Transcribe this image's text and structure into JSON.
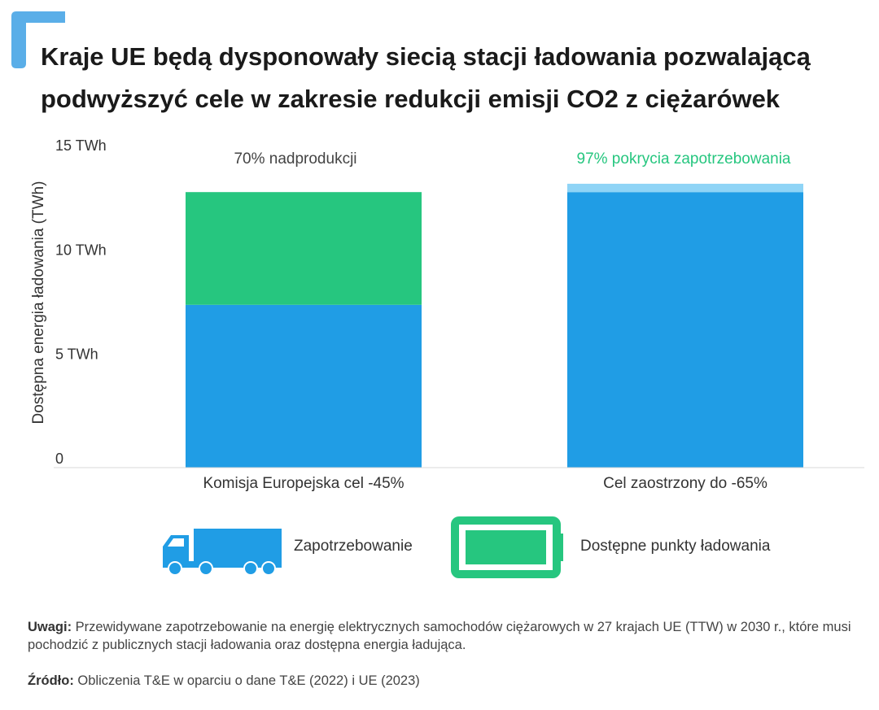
{
  "title": "Kraje UE będą dysponowały siecią stacji ładowania pozwalającą podwyższyć cele w zakresie redukcji emisji CO2 z ciężarówek",
  "colors": {
    "demand": "#209de5",
    "available": "#26c67f",
    "available_light": "#8fd4f6",
    "accent_text": "#26c67f",
    "text": "#333333"
  },
  "chart_data": {
    "type": "bar",
    "stacked": true,
    "categories": [
      "Komisja Europejska cel -45%",
      "Cel zaostrzony do -65%"
    ],
    "series": [
      {
        "name": "Zapotrzebowanie",
        "values": [
          7.8,
          13.2
        ]
      },
      {
        "name": "Dostępne punkty ładowania",
        "values": [
          5.4,
          0.4
        ]
      }
    ],
    "annotations": [
      "70% nadprodukcji",
      "97% pokrycia zapotrzebowania"
    ],
    "ylabel": "Dostępna energia ładowania (TWh)",
    "yticks": [
      {
        "value": 0,
        "label": "0"
      },
      {
        "value": 5,
        "label": "5 TWh"
      },
      {
        "value": 10,
        "label": "10 TWh"
      },
      {
        "value": 15,
        "label": "15 TWh"
      }
    ],
    "ylim": [
      0,
      15
    ]
  },
  "legend": {
    "demand_label": "Zapotrzebowanie",
    "available_label": "Dostępne punkty ładowania",
    "demand_icon": "truck-icon",
    "available_icon": "battery-icon"
  },
  "notes": {
    "label": "Uwagi:",
    "text": " Przewidywane zapotrzebowanie na energię elektrycznych samochodów ciężarowych w 27 krajach UE (TTW) w 2030 r., które musi pochodzić z publicznych stacji ładowania oraz dostępna energia ładująca."
  },
  "source": {
    "label": "Źródło:",
    "text": " Obliczenia T&E w oparciu o dane T&E (2022) i UE (2023)"
  }
}
